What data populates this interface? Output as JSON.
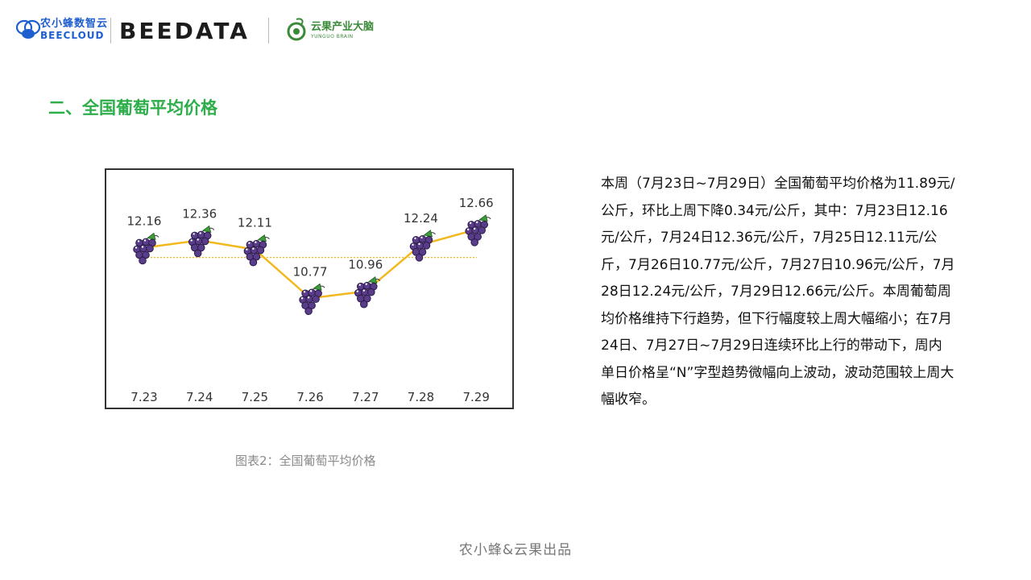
{
  "header": {
    "beecloud_cn": "农小蜂数智云",
    "beecloud_en": "BEECLOUD",
    "beedata": "BEEDATA",
    "yunguo_cn": "云果产业大脑",
    "yunguo_en": "YUNGUO BRAIN"
  },
  "section_title": "二、全国葡萄平均价格",
  "chart_data": {
    "type": "line",
    "categories": [
      "7.23",
      "7.24",
      "7.25",
      "7.26",
      "7.27",
      "7.28",
      "7.29"
    ],
    "values": [
      12.16,
      12.36,
      12.11,
      10.77,
      10.96,
      12.24,
      12.66
    ],
    "value_labels": [
      "12.16",
      "12.36",
      "12.11",
      "10.77",
      "10.96",
      "12.24",
      "12.66"
    ],
    "average": 11.89,
    "ylim": [
      10.2,
      13.1
    ],
    "line_color": "#f2b81e",
    "average_line_color": "#f2b81e",
    "marker": "grape-icon",
    "grid": false,
    "title": "",
    "xlabel": "",
    "ylabel": ""
  },
  "caption": "图表2：全国葡萄平均价格",
  "description": "本周（7月23日~7月29日）全国葡萄平均价格为11.89元/公斤，环比上周下降0.34元/公斤，其中：7月23日12.16元/公斤，7月24日12.36元/公斤，7月25日12.11元/公斤，7月26日10.77元/公斤，7月27日10.96元/公斤，7月28日12.24元/公斤，7月29日12.66元/公斤。本周葡萄周均价格维持下行趋势，但下行幅度较上周大幅缩小；在7月24日、7月27日~7月29日连续环比上行的带动下，周内单日价格呈“N”字型趋势微幅向上波动，波动范围较上周大幅收窄。",
  "footer": "农小蜂&云果出品"
}
